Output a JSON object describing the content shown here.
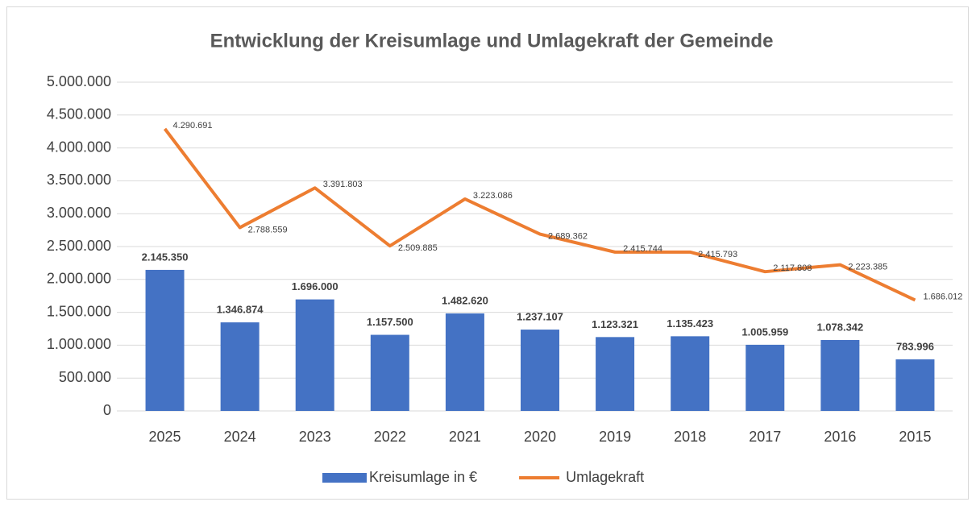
{
  "chart_data": {
    "type": "bar",
    "title": "Entwicklung der Kreisumlage und Umlagekraft der Gemeinde",
    "categories": [
      "2025",
      "2024",
      "2023",
      "2022",
      "2021",
      "2020",
      "2019",
      "2018",
      "2017",
      "2016",
      "2015"
    ],
    "series": [
      {
        "name": "Kreisumlage in €",
        "type": "bar",
        "color": "#4472c4",
        "values": [
          2145350,
          1346874,
          1696000,
          1157500,
          1482620,
          1237107,
          1123321,
          1135423,
          1005959,
          1078342,
          783996
        ],
        "value_labels": [
          "2.145.350",
          "1.346.874",
          "1.696.000",
          "1.157.500",
          "1.482.620",
          "1.237.107",
          "1.123.321",
          "1.135.423",
          "1.005.959",
          "1.078.342",
          "783.996"
        ]
      },
      {
        "name": "Umlagekraft",
        "type": "line",
        "color": "#ed7d31",
        "values": [
          4290691,
          2788559,
          3391803,
          2509885,
          3223086,
          2689362,
          2415744,
          2415793,
          2117808,
          2223385,
          1686012
        ],
        "value_labels": [
          "4.290.691",
          "2.788.559",
          "3.391.803",
          "2.509.885",
          "3.223.086",
          "2.689.362",
          "2.415.744",
          "2.415.793",
          "2.117.808",
          "2.223.385",
          "1.686.012"
        ]
      }
    ],
    "ylim": [
      0,
      5000000
    ],
    "yticks": [
      0,
      {
        "value": 500000,
        "label": "500.000"
      },
      {
        "value": 1000000,
        "label": "1.000.000"
      },
      {
        "value": 1500000,
        "label": "1.500.000"
      },
      {
        "value": 2000000,
        "label": "2.000.000"
      },
      {
        "value": 2500000,
        "label": "2.500.000"
      },
      {
        "value": 3000000,
        "label": "3.000.000"
      },
      {
        "value": 3500000,
        "label": "3.500.000"
      },
      {
        "value": 4000000,
        "label": "4.000.000"
      },
      {
        "value": 4500000,
        "label": "4.500.000"
      },
      {
        "value": 5000000,
        "label": "5.000.000"
      }
    ],
    "grid": true,
    "legend": "bottom"
  }
}
